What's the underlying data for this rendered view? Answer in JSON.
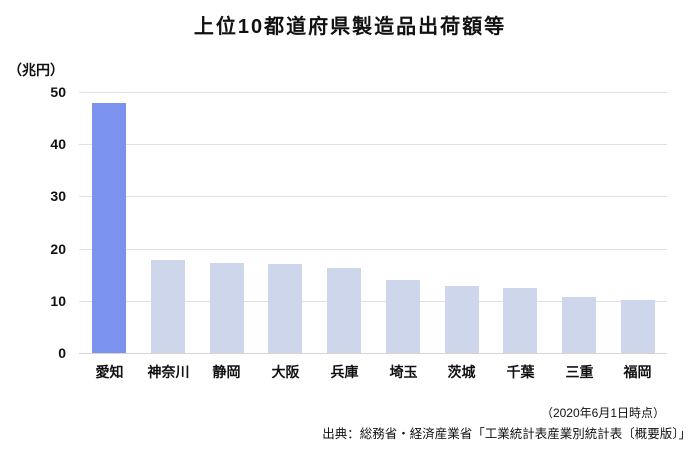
{
  "title": "上位10都道府県製造品出荷額等",
  "footer": {
    "asof": "（2020年6月1日時点）",
    "source": "出典：総務省・経済産業省「工業統計表産業別統計表〔概要版〕」"
  },
  "chart_data": {
    "type": "bar",
    "title": "上位10都道府県製造品出荷額等",
    "unit_label": "（兆円）",
    "categories": [
      "愛知",
      "神奈川",
      "静岡",
      "大阪",
      "兵庫",
      "埼玉",
      "茨城",
      "千葉",
      "三重",
      "福岡"
    ],
    "values": [
      47.9,
      17.9,
      17.3,
      17.0,
      16.3,
      13.9,
      12.9,
      12.5,
      10.8,
      10.1
    ],
    "ylabel": "兆円",
    "xlabel": "",
    "ylim": [
      0,
      50
    ],
    "yticks": [
      0,
      10,
      20,
      30,
      40,
      50
    ],
    "grid": true,
    "legend": "none",
    "highlight_index": 0,
    "colors": {
      "highlight_bar": "#7b92ee",
      "bar": "#cdd6eb",
      "gridline": "#e0e0e0",
      "baseline": "#d6d6d6",
      "text": "#111111"
    }
  }
}
